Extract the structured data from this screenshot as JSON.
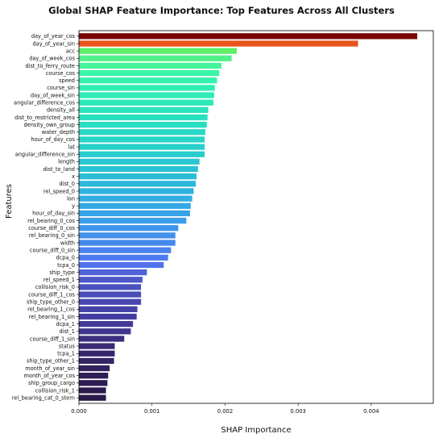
{
  "chart_data": {
    "type": "bar",
    "orientation": "horizontal",
    "title": "Global SHAP Feature Importance: Top Features Across All Clusters",
    "xlabel": "SHAP Importance",
    "ylabel": "Features",
    "xlim": [
      0,
      0.00485
    ],
    "xticks": [
      "0.000",
      "0.001",
      "0.002",
      "0.003",
      "0.004"
    ],
    "xtick_values": [
      0,
      0.001,
      0.002,
      0.003,
      0.004
    ],
    "grid": false,
    "colormap": "turbo-like: dark red (top) → orange → green → cyan → blue → dark purple (bottom)",
    "categories": [
      "day_of_year_cos",
      "day_of_year_sin",
      "acc",
      "day_of_week_cos",
      "dist_to_ferry_route",
      "course_cos",
      "speed",
      "course_sin",
      "day_of_week_sin",
      "angular_difference_cos",
      "density_all",
      "dist_to_restricted_area",
      "density_own_group",
      "water_depth",
      "hour_of_day_cos",
      "lat",
      "angular_difference_sin",
      "length",
      "dist_to_land",
      "x",
      "dist_0",
      "rel_speed_0",
      "lon",
      "y",
      "hour_of_day_sin",
      "rel_bearing_0_cos",
      "course_diff_0_cos",
      "rel_bearing_0_sin",
      "width",
      "course_diff_0_sin",
      "dcpa_0",
      "tcpa_0",
      "ship_type",
      "rel_speed_1",
      "collision_risk_0",
      "course_diff_1_cos",
      "ship_type_other_0",
      "rel_bearing_1_cos",
      "rel_bearing_1_sin",
      "dcpa_1",
      "dist_1",
      "course_diff_1_sin",
      "status",
      "tcpa_1",
      "ship_type_other_1",
      "month_of_year_sin",
      "month_of_year_cos",
      "ship_group_cargo",
      "collision_risk_1",
      "rel_bearing_cat_0_stern"
    ],
    "values": [
      0.00463,
      0.00382,
      0.00216,
      0.00209,
      0.00195,
      0.00192,
      0.00189,
      0.00186,
      0.00185,
      0.00184,
      0.00177,
      0.00176,
      0.00175,
      0.00173,
      0.00172,
      0.00172,
      0.00172,
      0.00165,
      0.00163,
      0.00161,
      0.0016,
      0.00157,
      0.00155,
      0.00153,
      0.00152,
      0.00147,
      0.00136,
      0.00132,
      0.00132,
      0.00126,
      0.00122,
      0.00116,
      0.00093,
      0.00087,
      0.00085,
      0.00085,
      0.00085,
      0.0008,
      0.00079,
      0.00074,
      0.00071,
      0.00062,
      0.00049,
      0.00049,
      0.00048,
      0.00042,
      0.0004,
      0.00039,
      0.00037,
      0.00037
    ],
    "colors": [
      "#7a0403",
      "#e8541a",
      "#5ef06a",
      "#52f28a",
      "#46f59a",
      "#3cf5a6",
      "#35f2ae",
      "#31efb3",
      "#2eecb7",
      "#2ce8ba",
      "#2be4bd",
      "#2ae1bf",
      "#29ddc2",
      "#28d8c5",
      "#28d4c8",
      "#28d0ca",
      "#28ccce",
      "#29c7d1",
      "#2ac2d5",
      "#2bbdd8",
      "#2db8db",
      "#2fb3de",
      "#31aee1",
      "#33a9e4",
      "#36a3e7",
      "#399de9",
      "#3d96eb",
      "#4190ec",
      "#4589ed",
      "#4982ee",
      "#4d7bee",
      "#5073ed",
      "#4f63d6",
      "#4d59c9",
      "#4b51be",
      "#4a4cb7",
      "#4847b0",
      "#4642a8",
      "#443da0",
      "#433a98",
      "#41368e",
      "#3d3082",
      "#392a73",
      "#36266b",
      "#342364",
      "#31205c",
      "#2f1d56",
      "#2d1b51",
      "#2b194c",
      "#2a1848"
    ]
  }
}
